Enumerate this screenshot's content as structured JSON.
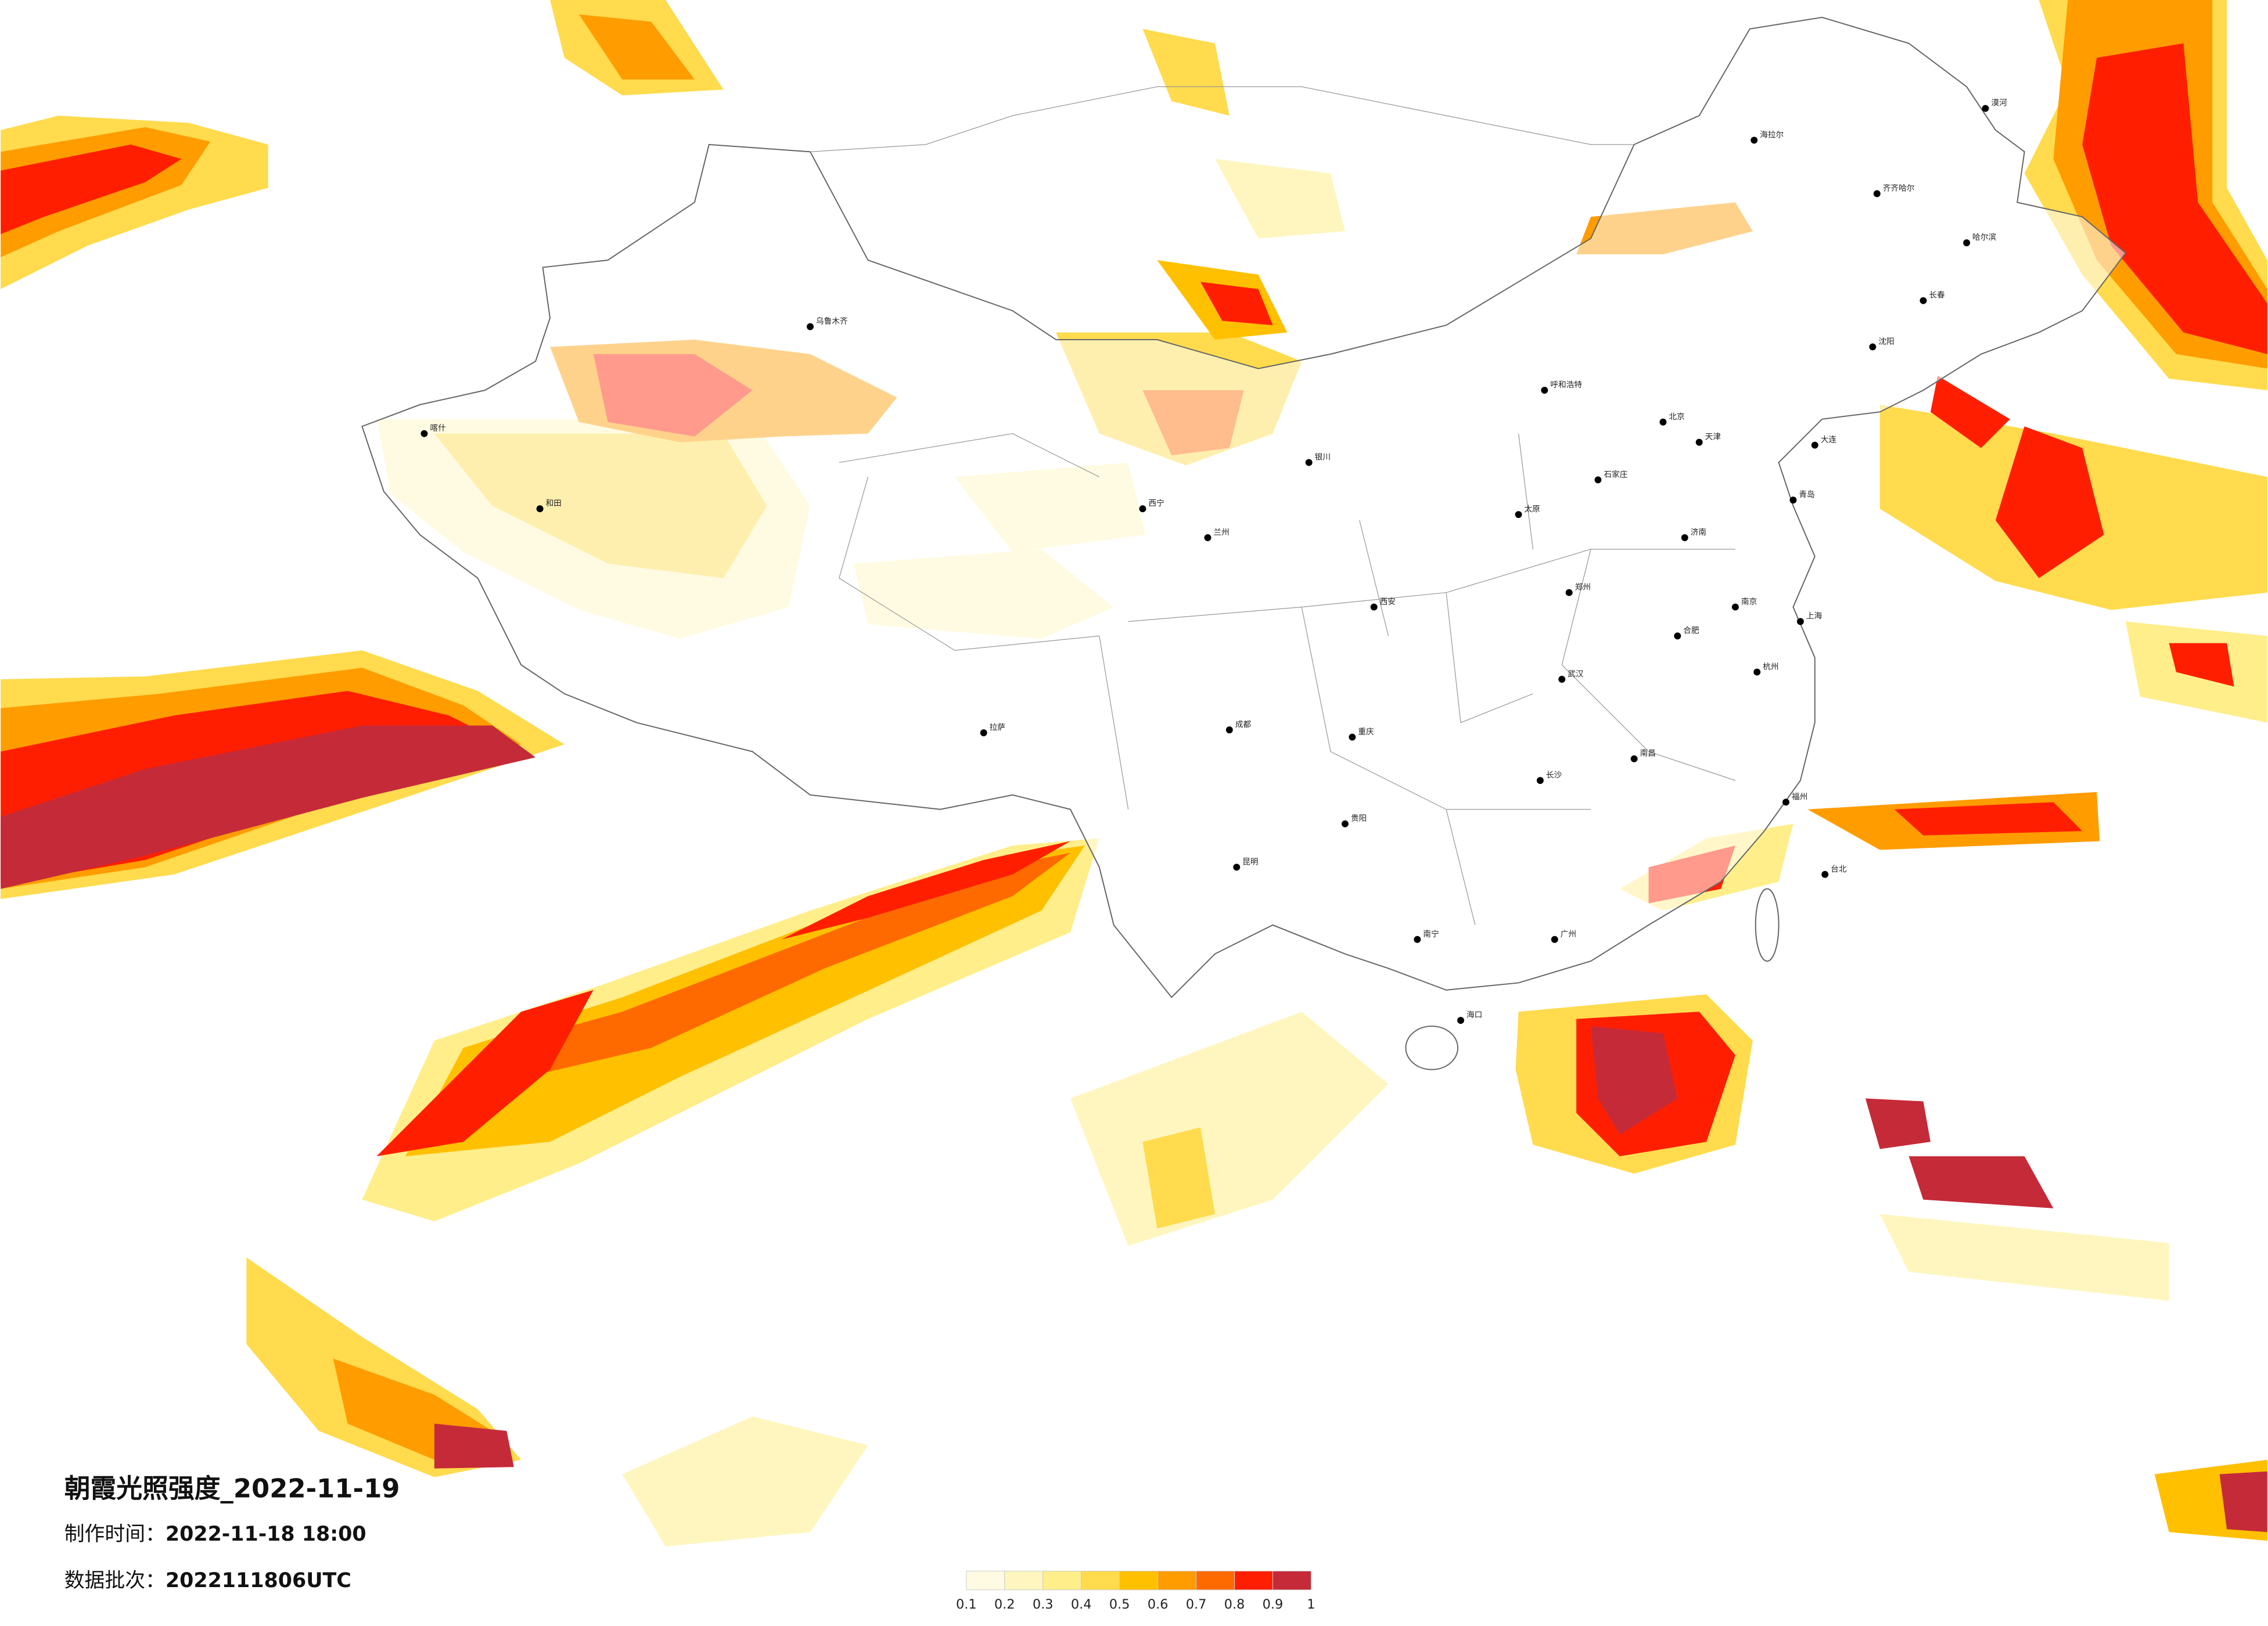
{
  "title": "朝霞光照强度_2022-11-19",
  "production_time": {
    "label": "制作时间：",
    "value": "2022-11-18 18:00"
  },
  "batch": {
    "label": "数据批次：",
    "value": "2022111806UTC"
  },
  "legend": {
    "colors": [
      "#fffbe3",
      "#fff6bf",
      "#ffee8a",
      "#ffdb4d",
      "#ffc000",
      "#ff9c00",
      "#ff6a00",
      "#ff1f00",
      "#c52a38"
    ],
    "ticks": [
      0.1,
      0.2,
      0.3,
      0.4,
      0.5,
      0.6,
      0.7,
      0.8,
      0.9,
      1
    ]
  },
  "cities": [
    "漠河",
    "海拉尔",
    "齐齐哈尔",
    "哈尔滨",
    "长春",
    "沈阳",
    "大连",
    "北京",
    "天津",
    "石家庄",
    "太原",
    "呼和浩特",
    "济南",
    "青岛",
    "郑州",
    "西安",
    "兰州",
    "西宁",
    "银川",
    "乌鲁木齐",
    "拉萨",
    "成都",
    "重庆",
    "贵阳",
    "昆明",
    "南宁",
    "广州",
    "长沙",
    "武汉",
    "南昌",
    "合肥",
    "南京",
    "上海",
    "杭州",
    "福州",
    "台北",
    "海口",
    "喀什",
    "和田"
  ]
}
